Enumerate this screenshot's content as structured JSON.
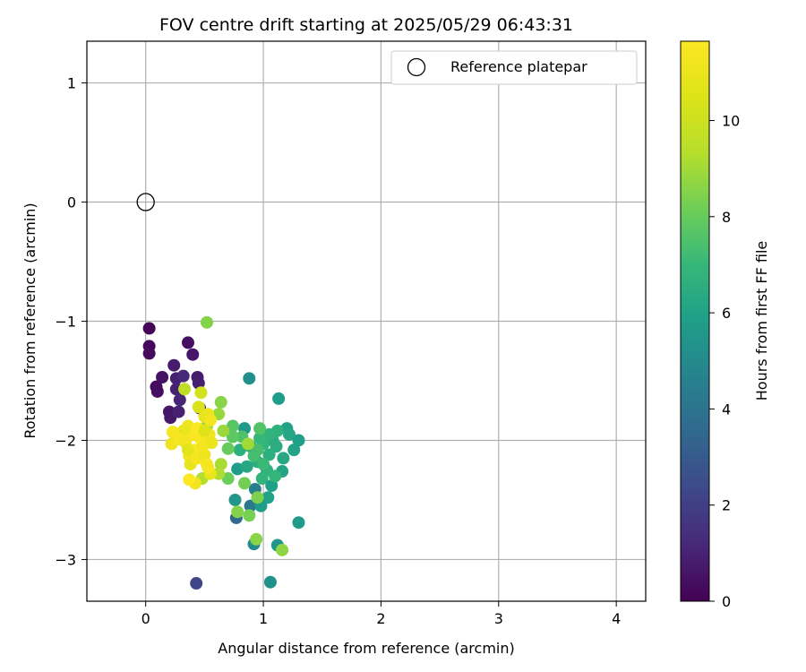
{
  "chart_data": {
    "type": "scatter",
    "title": "FOV centre drift starting at 2025/05/29 06:43:31",
    "xlabel": "Angular distance from reference (arcmin)",
    "ylabel": "Rotation from reference (arcmin)",
    "xlim": [
      -0.5,
      4.25
    ],
    "ylim": [
      -3.35,
      1.35
    ],
    "xticks": [
      0,
      1,
      2,
      3,
      4
    ],
    "yticks": [
      1,
      0,
      -1,
      -2,
      -3
    ],
    "xtick_labels": [
      "0",
      "1",
      "2",
      "3",
      "4"
    ],
    "ytick_labels": [
      "1",
      "0",
      "−1",
      "−2",
      "−3"
    ],
    "grid": true,
    "legend": {
      "placement": "top-right",
      "label": "Reference platepar",
      "marker": "open circle"
    },
    "reference_point": {
      "x": 0,
      "y": 0
    },
    "colorbar": {
      "label": "Hours from first FF file",
      "colormap": "viridis",
      "range": [
        0,
        11.65
      ],
      "ticks": [
        0,
        2,
        4,
        6,
        8,
        10
      ],
      "tick_labels": [
        "0",
        "2",
        "4",
        "6",
        "8",
        "10"
      ]
    },
    "series": [
      {
        "points": [
          {
            "x": 0.03,
            "y": -1.06,
            "c": 0.1
          },
          {
            "x": 0.03,
            "y": -1.21,
            "c": 0.2
          },
          {
            "x": 0.03,
            "y": -1.27,
            "c": 0.3
          },
          {
            "x": 0.09,
            "y": -1.55,
            "c": 0.3
          },
          {
            "x": 0.1,
            "y": -1.59,
            "c": 0.4
          },
          {
            "x": 0.14,
            "y": -1.47,
            "c": 0.5
          },
          {
            "x": 0.2,
            "y": -1.76,
            "c": 0.6
          },
          {
            "x": 0.21,
            "y": -1.81,
            "c": 0.7
          },
          {
            "x": 0.24,
            "y": -1.37,
            "c": 0.8
          },
          {
            "x": 0.26,
            "y": -1.48,
            "c": 0.9
          },
          {
            "x": 0.26,
            "y": -1.57,
            "c": 1.0
          },
          {
            "x": 0.28,
            "y": -1.76,
            "c": 1.0
          },
          {
            "x": 0.29,
            "y": -1.66,
            "c": 1.1
          },
          {
            "x": 0.32,
            "y": -1.46,
            "c": 1.2
          },
          {
            "x": 0.36,
            "y": -1.18,
            "c": 0.4
          },
          {
            "x": 0.4,
            "y": -1.28,
            "c": 0.6
          },
          {
            "x": 0.44,
            "y": -1.47,
            "c": 0.8
          },
          {
            "x": 0.45,
            "y": -1.52,
            "c": 0.9
          },
          {
            "x": 0.46,
            "y": -1.73,
            "c": 1.0
          },
          {
            "x": 0.43,
            "y": -3.2,
            "c": 2.2
          },
          {
            "x": 0.88,
            "y": -1.48,
            "c": 5.2
          },
          {
            "x": 0.93,
            "y": -2.41,
            "c": 4.5
          },
          {
            "x": 0.76,
            "y": -2.5,
            "c": 5.5
          },
          {
            "x": 0.78,
            "y": -2.24,
            "c": 5.8
          },
          {
            "x": 0.77,
            "y": -2.65,
            "c": 3.5
          },
          {
            "x": 0.89,
            "y": -2.55,
            "c": 4.2
          },
          {
            "x": 0.92,
            "y": -2.87,
            "c": 5.0
          },
          {
            "x": 1.06,
            "y": -3.19,
            "c": 5.3
          },
          {
            "x": 1.12,
            "y": -2.88,
            "c": 5.5
          },
          {
            "x": 1.3,
            "y": -2.69,
            "c": 5.7
          },
          {
            "x": 1.13,
            "y": -1.65,
            "c": 5.8
          },
          {
            "x": 1.2,
            "y": -1.9,
            "c": 6.0
          },
          {
            "x": 1.22,
            "y": -1.95,
            "c": 6.2
          },
          {
            "x": 1.26,
            "y": -2.08,
            "c": 6.0
          },
          {
            "x": 1.3,
            "y": -2.0,
            "c": 5.9
          },
          {
            "x": 1.17,
            "y": -2.15,
            "c": 6.3
          },
          {
            "x": 1.08,
            "y": -2.0,
            "c": 6.4
          },
          {
            "x": 1.11,
            "y": -2.05,
            "c": 6.5
          },
          {
            "x": 1.05,
            "y": -2.12,
            "c": 6.6
          },
          {
            "x": 1.03,
            "y": -2.25,
            "c": 6.7
          },
          {
            "x": 0.99,
            "y": -2.32,
            "c": 6.8
          },
          {
            "x": 1.07,
            "y": -2.38,
            "c": 5.9
          },
          {
            "x": 1.04,
            "y": -2.48,
            "c": 6.0
          },
          {
            "x": 0.98,
            "y": -2.55,
            "c": 5.8
          },
          {
            "x": 1.16,
            "y": -2.26,
            "c": 6.1
          },
          {
            "x": 0.84,
            "y": -1.9,
            "c": 5.6
          },
          {
            "x": 0.89,
            "y": -2.05,
            "c": 6.2
          },
          {
            "x": 0.93,
            "y": -2.1,
            "c": 6.4
          },
          {
            "x": 0.95,
            "y": -2.18,
            "c": 6.5
          },
          {
            "x": 0.86,
            "y": -2.22,
            "c": 6.3
          },
          {
            "x": 0.8,
            "y": -2.08,
            "c": 6.6
          },
          {
            "x": 1.12,
            "y": -1.92,
            "c": 6.7
          },
          {
            "x": 1.0,
            "y": -2.03,
            "c": 6.9
          },
          {
            "x": 1.05,
            "y": -1.95,
            "c": 6.8
          },
          {
            "x": 0.97,
            "y": -1.98,
            "c": 7.0
          },
          {
            "x": 1.1,
            "y": -2.3,
            "c": 6.9
          },
          {
            "x": 1.0,
            "y": -2.2,
            "c": 7.1
          },
          {
            "x": 0.97,
            "y": -1.9,
            "c": 7.6
          },
          {
            "x": 0.95,
            "y": -2.08,
            "c": 7.4
          },
          {
            "x": 0.92,
            "y": -2.13,
            "c": 7.3
          },
          {
            "x": 0.82,
            "y": -1.97,
            "c": 7.5
          },
          {
            "x": 0.74,
            "y": -1.88,
            "c": 7.7
          },
          {
            "x": 0.74,
            "y": -1.97,
            "c": 7.8
          },
          {
            "x": 0.7,
            "y": -2.07,
            "c": 8.0
          },
          {
            "x": 0.7,
            "y": -2.32,
            "c": 8.1
          },
          {
            "x": 0.84,
            "y": -2.36,
            "c": 8.2
          },
          {
            "x": 0.88,
            "y": -2.63,
            "c": 8.3
          },
          {
            "x": 0.95,
            "y": -2.48,
            "c": 8.4
          },
          {
            "x": 0.78,
            "y": -2.6,
            "c": 8.5
          },
          {
            "x": 0.94,
            "y": -2.83,
            "c": 8.6
          },
          {
            "x": 1.16,
            "y": -2.92,
            "c": 8.7
          },
          {
            "x": 0.52,
            "y": -1.01,
            "c": 8.5
          },
          {
            "x": 0.64,
            "y": -1.68,
            "c": 8.6
          },
          {
            "x": 0.62,
            "y": -1.78,
            "c": 8.8
          },
          {
            "x": 0.66,
            "y": -1.92,
            "c": 8.9
          },
          {
            "x": 0.52,
            "y": -1.88,
            "c": 9.0
          },
          {
            "x": 0.64,
            "y": -2.2,
            "c": 9.1
          },
          {
            "x": 0.62,
            "y": -2.28,
            "c": 9.2
          },
          {
            "x": 0.48,
            "y": -2.32,
            "c": 9.3
          },
          {
            "x": 0.87,
            "y": -2.03,
            "c": 9.0
          },
          {
            "x": 0.33,
            "y": -1.57,
            "c": 9.6
          },
          {
            "x": 0.47,
            "y": -1.6,
            "c": 10.2
          },
          {
            "x": 0.45,
            "y": -1.72,
            "c": 10.4
          },
          {
            "x": 0.5,
            "y": -1.8,
            "c": 10.8
          },
          {
            "x": 0.53,
            "y": -1.78,
            "c": 11.0
          },
          {
            "x": 0.55,
            "y": -1.83,
            "c": 11.3
          },
          {
            "x": 0.4,
            "y": -1.95,
            "c": 11.5
          },
          {
            "x": 0.36,
            "y": -1.88,
            "c": 11.2
          },
          {
            "x": 0.32,
            "y": -1.92,
            "c": 11.0
          },
          {
            "x": 0.27,
            "y": -1.96,
            "c": 10.8
          },
          {
            "x": 0.23,
            "y": -1.93,
            "c": 11.4
          },
          {
            "x": 0.22,
            "y": -2.03,
            "c": 11.1
          },
          {
            "x": 0.29,
            "y": -1.99,
            "c": 11.5
          },
          {
            "x": 0.34,
            "y": -2.02,
            "c": 11.3
          },
          {
            "x": 0.37,
            "y": -2.13,
            "c": 11.2
          },
          {
            "x": 0.38,
            "y": -2.2,
            "c": 10.9
          },
          {
            "x": 0.42,
            "y": -2.08,
            "c": 11.6
          },
          {
            "x": 0.44,
            "y": -2.15,
            "c": 11.4
          },
          {
            "x": 0.46,
            "y": -1.98,
            "c": 11.5
          },
          {
            "x": 0.48,
            "y": -2.06,
            "c": 11.3
          },
          {
            "x": 0.5,
            "y": -2.12,
            "c": 11.1
          },
          {
            "x": 0.52,
            "y": -2.2,
            "c": 11.5
          },
          {
            "x": 0.54,
            "y": -1.95,
            "c": 11.2
          },
          {
            "x": 0.56,
            "y": -2.02,
            "c": 11.0
          },
          {
            "x": 0.55,
            "y": -2.28,
            "c": 10.9
          },
          {
            "x": 0.42,
            "y": -2.36,
            "c": 11.2
          },
          {
            "x": 0.37,
            "y": -2.33,
            "c": 11.6
          },
          {
            "x": 0.53,
            "y": -2.23,
            "c": 11.4
          },
          {
            "x": 0.36,
            "y": -2.08,
            "c": 10.7
          },
          {
            "x": 0.44,
            "y": -1.9,
            "c": 11.6
          },
          {
            "x": 0.5,
            "y": -1.92,
            "c": 10.6
          }
        ]
      }
    ]
  }
}
